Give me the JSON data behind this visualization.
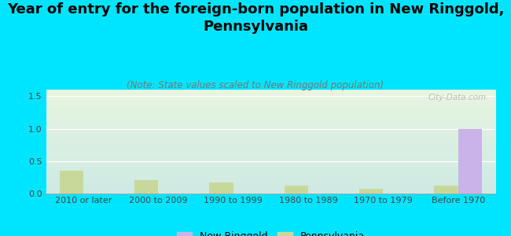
{
  "title": "Year of entry for the foreign-born population in New Ringgold,\nPennsylvania",
  "subtitle": "(Note: State values scaled to New Ringgold population)",
  "categories": [
    "2010 or later",
    "2000 to 2009",
    "1990 to 1999",
    "1980 to 1989",
    "1970 to 1979",
    "Before 1970"
  ],
  "new_ringgold": [
    0,
    0,
    0,
    0,
    0,
    1.0
  ],
  "pennsylvania": [
    0.35,
    0.21,
    0.17,
    0.12,
    0.07,
    0.12
  ],
  "nr_color": "#c9b3e8",
  "pa_color": "#c8d89a",
  "background_color": "#00e5ff",
  "plot_bg_top": "#e8f5e0",
  "plot_bg_bottom": "#ceeae4",
  "ylim": [
    0,
    1.6
  ],
  "yticks": [
    0,
    0.5,
    1,
    1.5
  ],
  "bar_width": 0.32,
  "title_fontsize": 13,
  "subtitle_fontsize": 8.5,
  "tick_fontsize": 8,
  "legend_fontsize": 9,
  "watermark": "City-Data.com"
}
